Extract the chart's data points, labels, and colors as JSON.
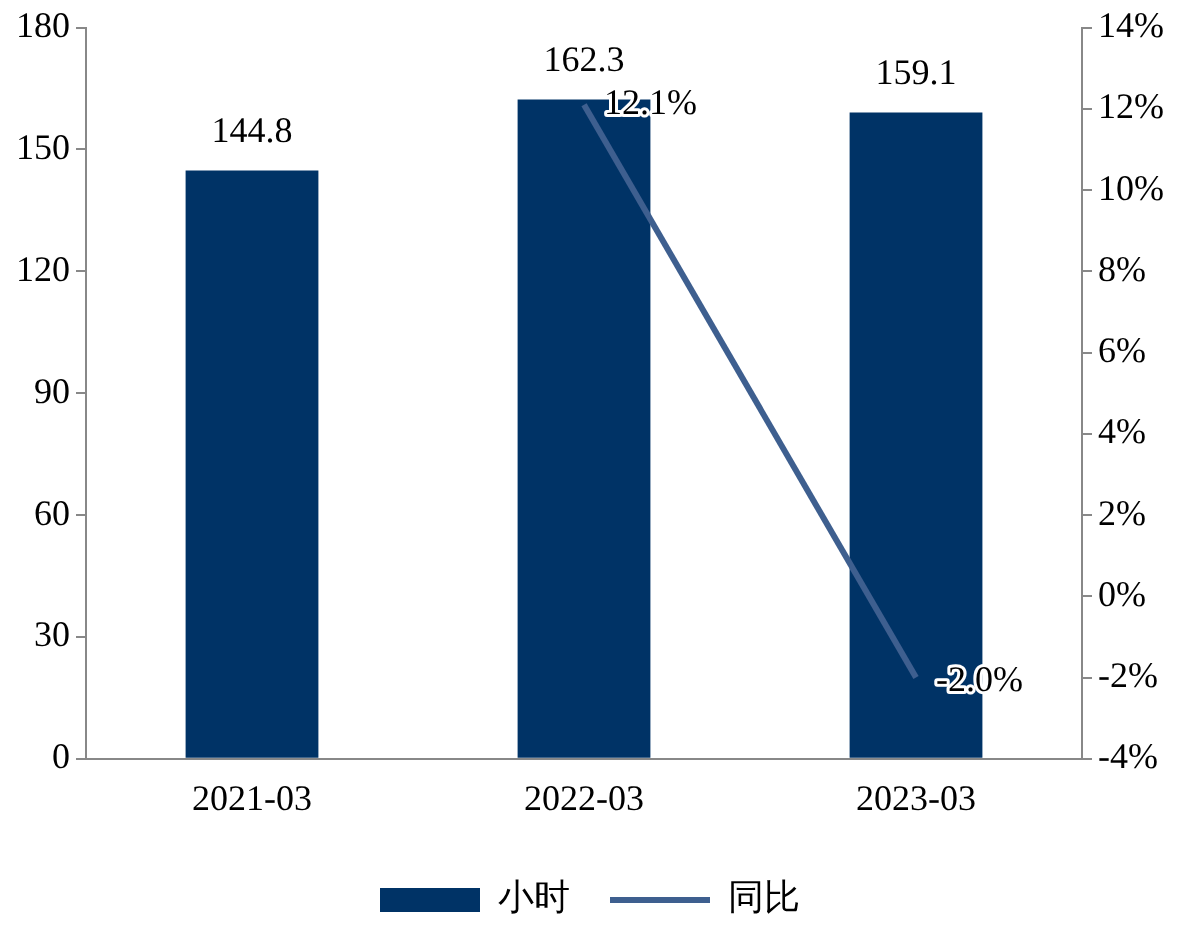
{
  "chart_data": {
    "type": "bar",
    "categories": [
      "2021-03",
      "2022-03",
      "2023-03"
    ],
    "series": [
      {
        "name": "小时",
        "color": "#003366",
        "values": [
          144.8,
          162.3,
          159.1
        ]
      },
      {
        "name": "同比",
        "type": "line",
        "axis": "y2",
        "color": "#3e5f8f",
        "values": [
          null,
          12.1,
          -2.0
        ],
        "value_labels": [
          null,
          "12.1%",
          "-2.0%"
        ]
      }
    ],
    "ylim": [
      0,
      180
    ],
    "yticks": [
      0,
      30,
      60,
      90,
      120,
      150,
      180
    ],
    "y2lim": [
      -4,
      14
    ],
    "y2ticks": [
      {
        "value": -4,
        "label": "-4%"
      },
      {
        "value": -2,
        "label": "-2%"
      },
      {
        "value": 0,
        "label": "0%"
      },
      {
        "value": 2,
        "label": "2%"
      },
      {
        "value": 4,
        "label": "4%"
      },
      {
        "value": 6,
        "label": "6%"
      },
      {
        "value": 8,
        "label": "8%"
      },
      {
        "value": 10,
        "label": "10%"
      },
      {
        "value": 12,
        "label": "12%"
      },
      {
        "value": 14,
        "label": "14%"
      }
    ],
    "data_labels": true,
    "legend": "bottom",
    "grid": false,
    "marker": "none",
    "line_style": "solid"
  }
}
